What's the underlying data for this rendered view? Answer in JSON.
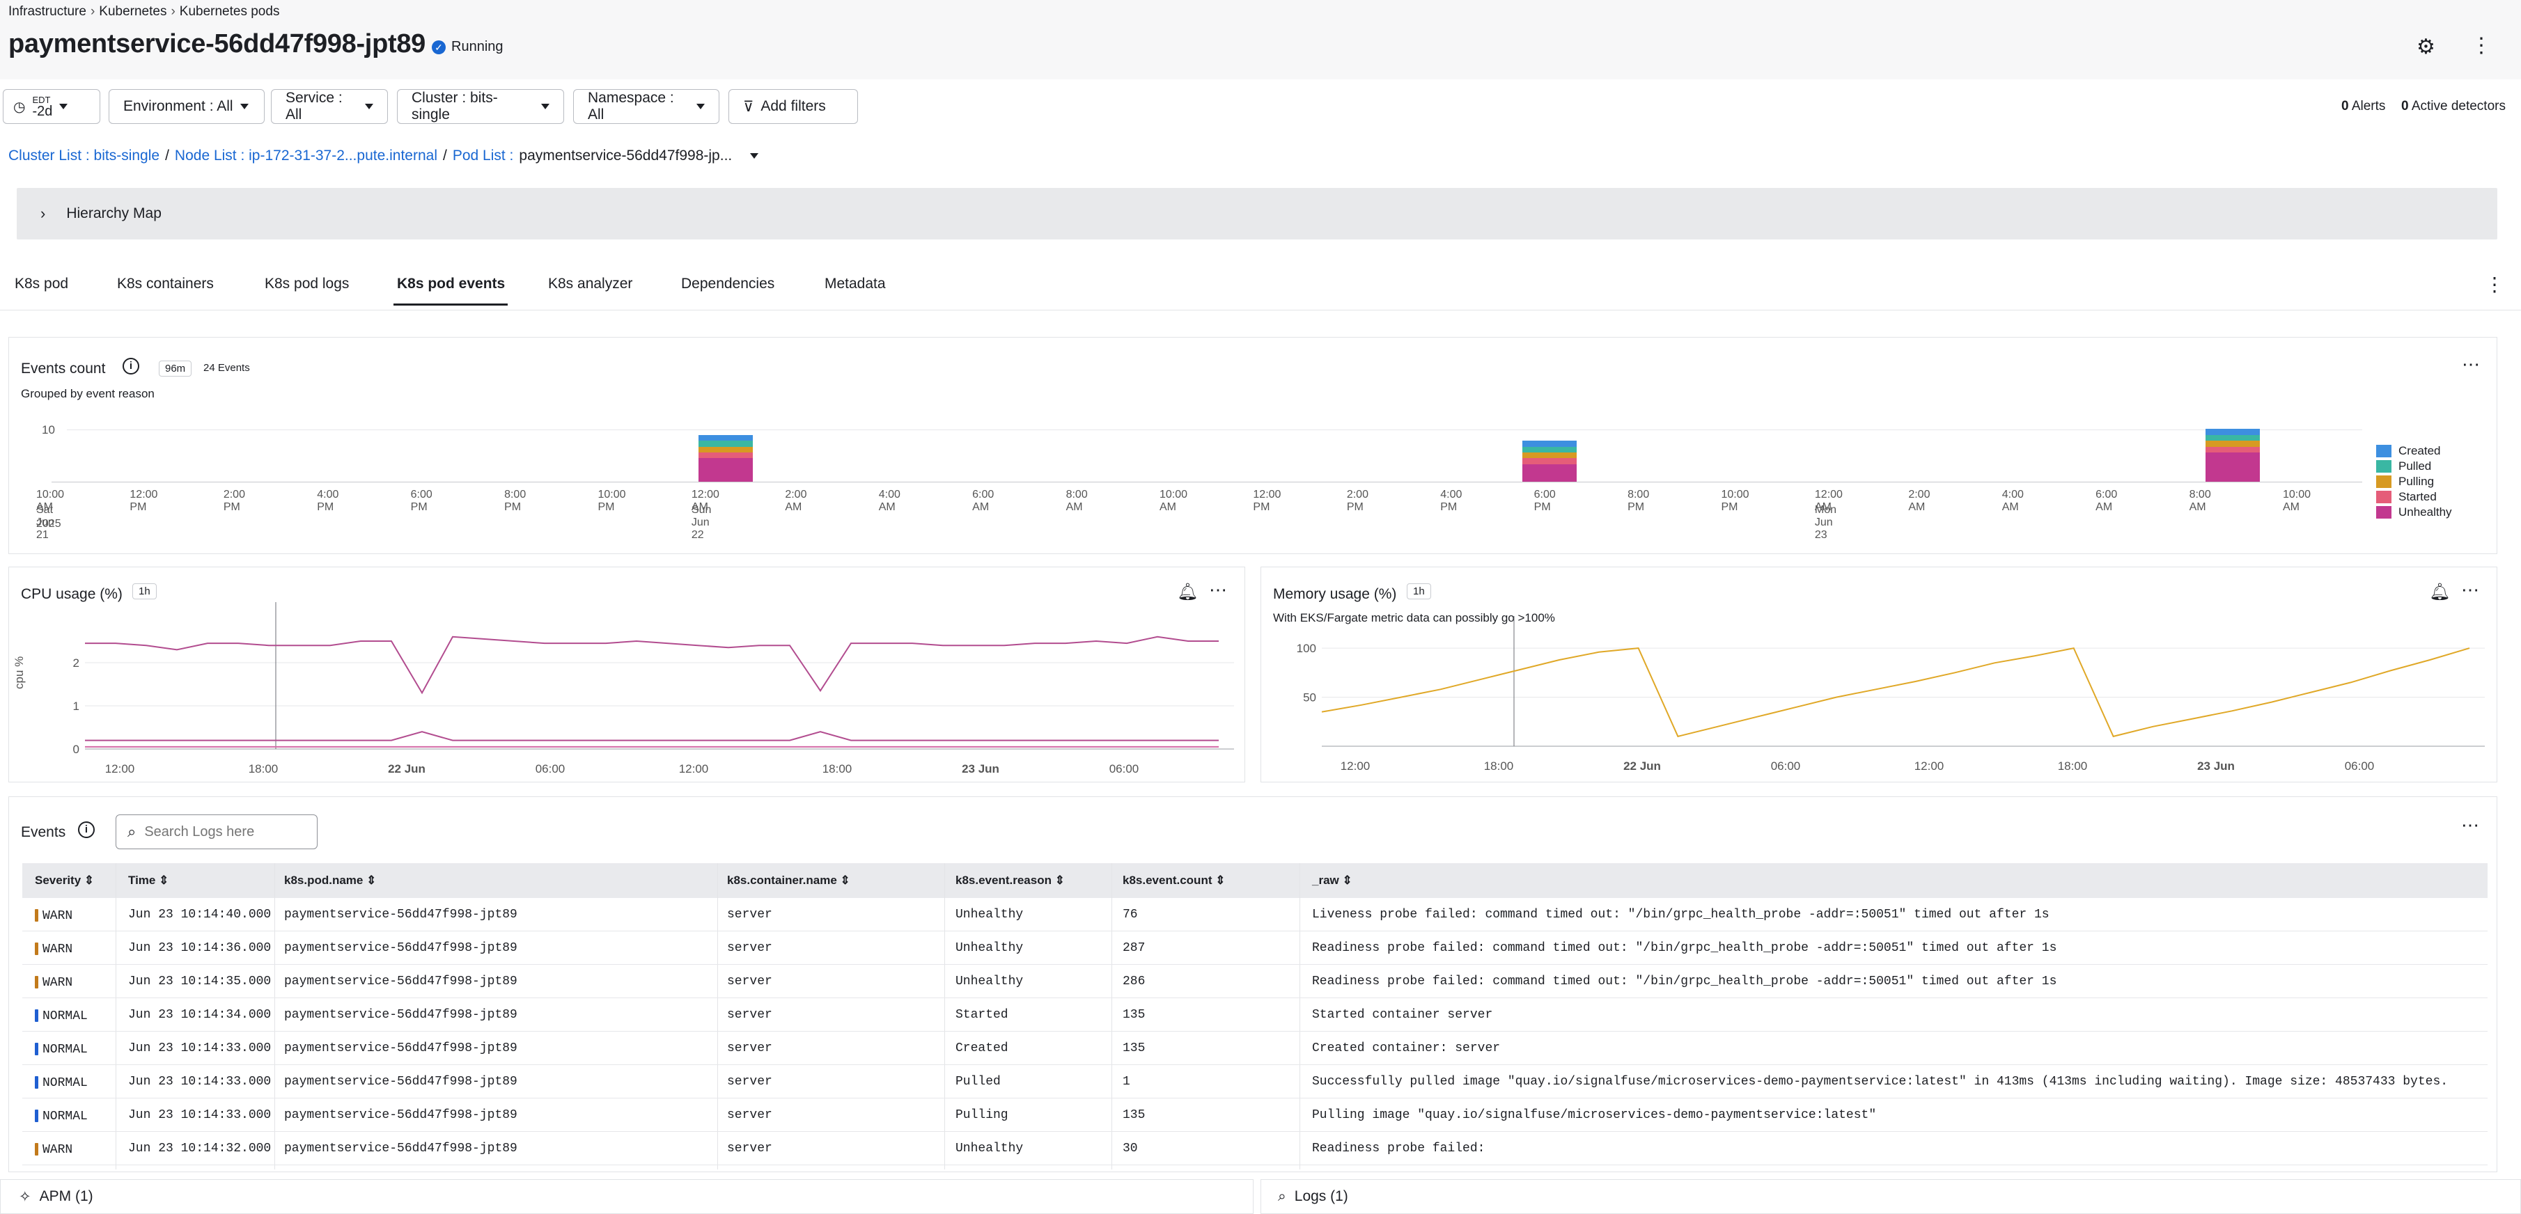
{
  "breadcrumb": [
    "Infrastructure",
    "Kubernetes",
    "Kubernetes pods"
  ],
  "header": {
    "title": "paymentservice-56dd47f998-jpt89",
    "status": "Running"
  },
  "filters": {
    "time": {
      "tz": "EDT",
      "value": "-2d"
    },
    "environment": "Environment : All",
    "service": "Service : All",
    "cluster": "Cluster : bits-single",
    "namespace": "Namespace : All",
    "add": "Add filters",
    "alerts_count": "0",
    "alerts_label": "Alerts",
    "detectors_count": "0",
    "detectors_label": "Active detectors"
  },
  "path": {
    "cluster": "Cluster List : bits-single",
    "node": "Node List : ip-172-31-37-2...pute.internal",
    "pod_prefix": "Pod List :",
    "pod": "paymentservice-56dd47f998-jp..."
  },
  "hierarchy": "Hierarchy Map",
  "tabs": [
    "K8s pod",
    "K8s containers",
    "K8s pod logs",
    "K8s pod events",
    "K8s analyzer",
    "Dependencies",
    "Metadata"
  ],
  "active_tab": "K8s pod events",
  "events_count": {
    "title": "Events count",
    "badge": "96m",
    "total": "24 Events",
    "subtitle": "Grouped by event reason",
    "chart_data": {
      "type": "bar",
      "stacked": true,
      "ylim": [
        0,
        10
      ],
      "yticks": [
        "10"
      ],
      "xticks": [
        "10:00 AM",
        "12:00 PM",
        "2:00 PM",
        "4:00 PM",
        "6:00 PM",
        "8:00 PM",
        "10:00 PM",
        "12:00 AM",
        "2:00 AM",
        "4:00 AM",
        "6:00 AM",
        "8:00 AM",
        "10:00 AM",
        "12:00 PM",
        "2:00 PM",
        "4:00 PM",
        "6:00 PM",
        "8:00 PM",
        "10:00 PM",
        "12:00 AM",
        "2:00 AM",
        "4:00 AM",
        "6:00 AM",
        "8:00 AM",
        "10:00 AM"
      ],
      "xsubs": [
        {
          "i": 0,
          "lines": [
            "Sat Jun 21",
            "2025"
          ]
        },
        {
          "i": 7,
          "lines": [
            "Sun Jun 22"
          ]
        },
        {
          "i": 19,
          "lines": [
            "Mon Jun 23"
          ]
        }
      ],
      "categories": [
        "Sun Jun 22 ~12:00 AM",
        "Sun Jun 22 ~5:30 PM",
        "Mon Jun 23 ~9:30 AM"
      ],
      "series": [
        {
          "name": "Created",
          "color": "#3d8fe0",
          "values": [
            1,
            1,
            1
          ]
        },
        {
          "name": "Pulled",
          "color": "#3ab7a3",
          "values": [
            1,
            1,
            1
          ]
        },
        {
          "name": "Pulling",
          "color": "#d79a22",
          "values": [
            1,
            1,
            1
          ]
        },
        {
          "name": "Started",
          "color": "#e55d79",
          "values": [
            1,
            1,
            1
          ]
        },
        {
          "name": "Unhealthy",
          "color": "#c2388f",
          "values": [
            4,
            3,
            5
          ]
        }
      ]
    }
  },
  "cpu": {
    "title": "CPU usage (%)",
    "badge": "1h",
    "ylabel": "cpu %",
    "chart_data": {
      "type": "line",
      "ylim": [
        0,
        3
      ],
      "yticks": [
        "2",
        "1",
        "0"
      ],
      "xticks": [
        "12:00",
        "18:00",
        "22 Jun",
        "06:00",
        "12:00",
        "18:00",
        "23 Jun",
        "06:00"
      ],
      "series": [
        {
          "color": "#b24c8f",
          "values": [
            2.45,
            2.45,
            2.4,
            2.3,
            2.45,
            2.45,
            2.4,
            2.4,
            2.4,
            2.5,
            2.5,
            1.3,
            2.6,
            2.55,
            2.5,
            2.45,
            2.45,
            2.45,
            2.5,
            2.45,
            2.4,
            2.35,
            2.4,
            2.4,
            1.35,
            2.45,
            2.45,
            2.45,
            2.4,
            2.4,
            2.4,
            2.45,
            2.45,
            2.5,
            2.45,
            2.6,
            2.5,
            2.5
          ]
        },
        {
          "color": "#b24c8f",
          "values": [
            0.2,
            0.2,
            0.2,
            0.2,
            0.2,
            0.2,
            0.2,
            0.2,
            0.2,
            0.2,
            0.2,
            0.4,
            0.2,
            0.2,
            0.2,
            0.2,
            0.2,
            0.2,
            0.2,
            0.2,
            0.2,
            0.2,
            0.2,
            0.2,
            0.4,
            0.2,
            0.2,
            0.2,
            0.2,
            0.2,
            0.2,
            0.2,
            0.2,
            0.2,
            0.2,
            0.2,
            0.2,
            0.2
          ]
        },
        {
          "color": "#d46aa6",
          "values": [
            0.05,
            0.05,
            0.05,
            0.05,
            0.05,
            0.05,
            0.05,
            0.05,
            0.05,
            0.05,
            0.05,
            0.05,
            0.05,
            0.05,
            0.05,
            0.05,
            0.05,
            0.05,
            0.05,
            0.05,
            0.05,
            0.05,
            0.05,
            0.05,
            0.05,
            0.05,
            0.05,
            0.05,
            0.05,
            0.05,
            0.05,
            0.05,
            0.05,
            0.05,
            0.05,
            0.05,
            0.05,
            0.05
          ]
        }
      ]
    }
  },
  "memory": {
    "title": "Memory usage (%)",
    "badge": "1h",
    "subtitle": "With EKS/Fargate metric data can possibly go >100%",
    "chart_data": {
      "type": "line",
      "ylim": [
        0,
        115
      ],
      "yticks": [
        "100",
        "50"
      ],
      "xticks": [
        "12:00",
        "18:00",
        "22 Jun",
        "06:00",
        "12:00",
        "18:00",
        "23 Jun",
        "06:00"
      ],
      "series": [
        {
          "color": "#e0a827",
          "values": [
            35,
            42,
            50,
            58,
            68,
            78,
            88,
            96,
            100,
            10,
            20,
            30,
            40,
            50,
            58,
            66,
            75,
            85,
            92,
            100,
            10,
            20,
            28,
            36,
            45,
            55,
            65,
            77,
            88,
            100
          ]
        }
      ]
    }
  },
  "events": {
    "title": "Events",
    "search_placeholder": "Search Logs here",
    "columns": [
      "Severity",
      "Time",
      "k8s.pod.name",
      "k8s.container.name",
      "k8s.event.reason",
      "k8s.event.count",
      "_raw"
    ],
    "rows": [
      [
        "WARN",
        "Jun 23 10:14:40.000",
        "paymentservice-56dd47f998-jpt89",
        "server",
        "Unhealthy",
        "76",
        "Liveness probe failed: command timed out: \"/bin/grpc_health_probe -addr=:50051\" timed out after 1s"
      ],
      [
        "WARN",
        "Jun 23 10:14:36.000",
        "paymentservice-56dd47f998-jpt89",
        "server",
        "Unhealthy",
        "287",
        "Readiness probe failed: command timed out: \"/bin/grpc_health_probe -addr=:50051\" timed out after 1s"
      ],
      [
        "WARN",
        "Jun 23 10:14:35.000",
        "paymentservice-56dd47f998-jpt89",
        "server",
        "Unhealthy",
        "286",
        "Readiness probe failed: command timed out: \"/bin/grpc_health_probe -addr=:50051\" timed out after 1s"
      ],
      [
        "NORMAL",
        "Jun 23 10:14:34.000",
        "paymentservice-56dd47f998-jpt89",
        "server",
        "Started",
        "135",
        "Started container server"
      ],
      [
        "NORMAL",
        "Jun 23 10:14:33.000",
        "paymentservice-56dd47f998-jpt89",
        "server",
        "Created",
        "135",
        "Created container: server"
      ],
      [
        "NORMAL",
        "Jun 23 10:14:33.000",
        "paymentservice-56dd47f998-jpt89",
        "server",
        "Pulled",
        "1",
        "Successfully pulled image \"quay.io/signalfuse/microservices-demo-paymentservice:latest\" in 413ms (413ms including waiting). Image size: 48537433 bytes."
      ],
      [
        "NORMAL",
        "Jun 23 10:14:33.000",
        "paymentservice-56dd47f998-jpt89",
        "server",
        "Pulling",
        "135",
        "Pulling image \"quay.io/signalfuse/microservices-demo-paymentservice:latest\""
      ],
      [
        "WARN",
        "Jun 23 10:14:32.000",
        "paymentservice-56dd47f998-jpt89",
        "server",
        "Unhealthy",
        "30",
        "Readiness probe failed:"
      ]
    ],
    "severity_colors": {
      "WARN": "#c27a1b",
      "NORMAL": "#1f5fd1"
    }
  },
  "footer": {
    "apm": "APM (1)",
    "logs": "Logs (1)"
  }
}
